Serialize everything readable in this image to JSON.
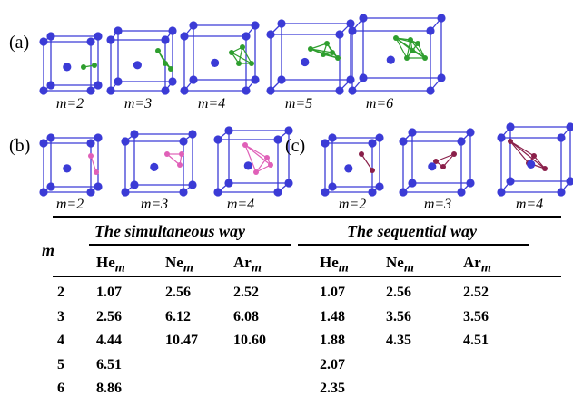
{
  "panels": {
    "a": {
      "label": "(a)",
      "m_labels": [
        "m=2",
        "m=3",
        "m=4",
        "m=5",
        "m=6"
      ],
      "cluster_color": "#2e9e2e"
    },
    "b": {
      "label": "(b)",
      "m_labels": [
        "m=2",
        "m=3",
        "m=4"
      ],
      "cluster_color": "#e060b8"
    },
    "c": {
      "label": "(c)",
      "m_labels": [
        "m=2",
        "m=3",
        "m=4"
      ],
      "cluster_color": "#8a1f4a"
    }
  },
  "lattice_color": "#3b3bd6",
  "table": {
    "row_header": "m",
    "group1": "The simultaneous way",
    "group2": "The sequential way",
    "columns": [
      "He",
      "Ne",
      "Ar",
      "He",
      "Ne",
      "Ar"
    ],
    "subscript": "m",
    "rows": [
      {
        "m": "2",
        "cells": [
          "1.07",
          "2.56",
          "2.52",
          "1.07",
          "2.56",
          "2.52"
        ]
      },
      {
        "m": "3",
        "cells": [
          "2.56",
          "6.12",
          "6.08",
          "1.48",
          "3.56",
          "3.56"
        ]
      },
      {
        "m": "4",
        "cells": [
          "4.44",
          "10.47",
          "10.60",
          "1.88",
          "4.35",
          "4.51"
        ]
      },
      {
        "m": "5",
        "cells": [
          "6.51",
          "",
          "",
          "2.07",
          "",
          ""
        ]
      },
      {
        "m": "6",
        "cells": [
          "8.86",
          "",
          "",
          "2.35",
          "",
          ""
        ]
      }
    ]
  }
}
